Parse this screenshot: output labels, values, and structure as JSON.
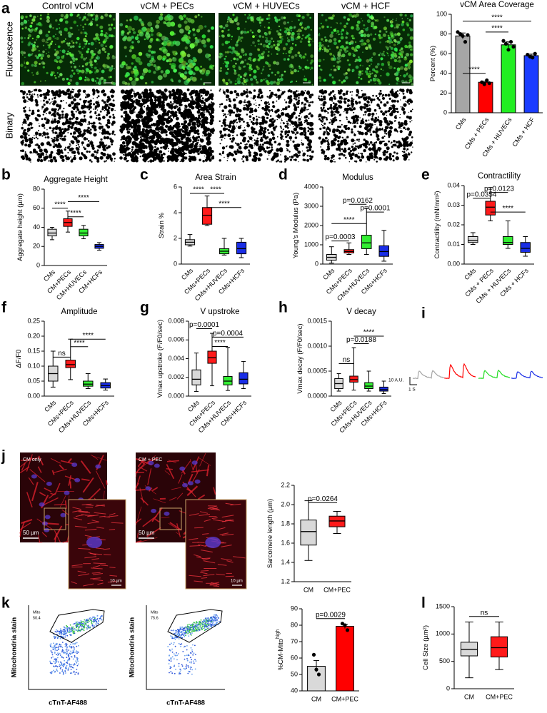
{
  "panel_a": {
    "panel": "a",
    "columns": [
      "Control vCM",
      "vCM + PECs",
      "vCM + HUVECs",
      "vCM + HCF"
    ],
    "rows": [
      "Fluorescence",
      "Binary"
    ]
  },
  "panel_i": {
    "panel": "i",
    "scale_y": "10 A.U.",
    "scale_x": "1 S"
  },
  "panel_j": {
    "panel": "j",
    "images": [
      {
        "label": "CM only",
        "scale_main": "50 µm",
        "scale_inset": "10 µm"
      },
      {
        "label": "CM + PEC",
        "scale_main": "50 µm",
        "scale_inset": "10 µm"
      }
    ]
  },
  "panel_k": {
    "panel": "k",
    "plots": [
      {
        "ylabel": "Mitochondria stain",
        "xlabel": "cTnT-AF488",
        "gate": "Mito",
        "percent": "50.4"
      },
      {
        "ylabel": "Mitochondria stain",
        "xlabel": "cTnT-AF488",
        "gate": "Mito",
        "percent": "75.6"
      }
    ]
  },
  "chart_data": [
    {
      "type": "bar",
      "title": "vCM Area Coverage",
      "ylabel": "Percent (%)",
      "categories": [
        "CMs",
        "CMs + PECs",
        "CMs + HUVECs",
        "CMs + HCF"
      ],
      "values": [
        78,
        31,
        69,
        58
      ],
      "errors": [
        3,
        1,
        3,
        1.5
      ],
      "points": [
        [
          82,
          80,
          78,
          72,
          79
        ],
        [
          31,
          29,
          33,
          30
        ],
        [
          73,
          70,
          64,
          72,
          67
        ],
        [
          59,
          57,
          56,
          60
        ]
      ],
      "colors": [
        "#a6a6a6",
        "#ff0000",
        "#22ee22",
        "#1a3cff"
      ],
      "ylim": [
        0,
        100
      ],
      "yticks": [
        0,
        20,
        40,
        60,
        80,
        100
      ],
      "annotations": [
        {
          "label": "****",
          "between": [
            0,
            3
          ],
          "y": 93
        },
        {
          "label": "****",
          "between": [
            1,
            2
          ],
          "y": 82
        },
        {
          "label": "****",
          "between": [
            0,
            1
          ],
          "y": 40
        }
      ]
    },
    {
      "type": "box",
      "panel": "b",
      "title": "Aggregate Height",
      "ylabel": "Aggregate height (µm)",
      "categories": [
        "CMs",
        "CM+PECs",
        "CM+HUVECs",
        "CM+HCFs"
      ],
      "min": [
        27,
        35,
        28,
        16
      ],
      "q1": [
        31,
        41,
        31,
        18
      ],
      "median": [
        34,
        45,
        34,
        20
      ],
      "q3": [
        38,
        49,
        38,
        22
      ],
      "max": [
        40,
        57,
        42,
        24
      ],
      "colors": [
        "#d9d9d9",
        "#ff1a1a",
        "#33ee33",
        "#1a2ee6"
      ],
      "ylim": [
        0,
        80
      ],
      "yticks": [
        0,
        20,
        40,
        60,
        80
      ],
      "annotations": [
        {
          "label": "****",
          "between": [
            0,
            1
          ],
          "y": 60
        },
        {
          "label": "****",
          "between": [
            1,
            3
          ],
          "y": 67
        },
        {
          "label": "****",
          "between": [
            1,
            2
          ],
          "y": 51
        }
      ]
    },
    {
      "type": "box",
      "panel": "c",
      "title": "Area Strain",
      "ylabel": "Strain %",
      "categories": [
        "CMs",
        "CMs+PECs",
        "CMs+HUVECs",
        "CMs+HCFs"
      ],
      "min": [
        1.4,
        3.0,
        0.7,
        0.5
      ],
      "q1": [
        1.5,
        3.1,
        0.8,
        0.8
      ],
      "median": [
        1.7,
        3.8,
        1.0,
        1.2
      ],
      "q3": [
        1.9,
        4.4,
        1.2,
        1.7
      ],
      "max": [
        2.3,
        5.3,
        2.0,
        2.0
      ],
      "colors": [
        "#d9d9d9",
        "#ff1a1a",
        "#33ee33",
        "#1a2ee6"
      ],
      "ylim": [
        0,
        6
      ],
      "yticks": [
        0,
        2,
        4,
        6
      ],
      "annotations": [
        {
          "label": "****",
          "between": [
            0,
            1
          ],
          "y": 5.5
        },
        {
          "label": "****",
          "between": [
            1,
            2
          ],
          "y": 5.5
        },
        {
          "label": "****",
          "between": [
            1,
            3
          ],
          "y": 4.4
        }
      ]
    },
    {
      "type": "box",
      "panel": "d",
      "title": "Modulus",
      "ylabel": "Young's Modulus (Pa)",
      "categories": [
        "CMs",
        "CMs+PECs",
        "CMs+HUVECs",
        "CMs+HCFs"
      ],
      "min": [
        50,
        500,
        500,
        150
      ],
      "q1": [
        200,
        580,
        800,
        400
      ],
      "median": [
        350,
        650,
        1100,
        650
      ],
      "q3": [
        500,
        750,
        1500,
        950
      ],
      "max": [
        900,
        1100,
        2900,
        1750
      ],
      "colors": [
        "#d9d9d9",
        "#ff1a1a",
        "#33ee33",
        "#1a2ee6"
      ],
      "ylim": [
        0,
        4000
      ],
      "yticks": [
        0,
        1000,
        2000,
        3000,
        4000
      ],
      "annotations": [
        {
          "label": "p=0.0162",
          "between": [
            1,
            2
          ],
          "y": 3100
        },
        {
          "label": "p=0.0001",
          "between": [
            2,
            3
          ],
          "y": 2700
        },
        {
          "label": "****",
          "between": [
            0,
            2
          ],
          "y": 2100
        },
        {
          "label": "p=0.0003",
          "between": [
            0,
            1
          ],
          "y": 1200
        }
      ]
    },
    {
      "type": "box",
      "panel": "e",
      "title": "Contractility",
      "ylabel": "Contractility (mN/mm²)",
      "categories": [
        "CMs",
        "CMs + PECs",
        "CMs + HUVECs",
        "CMs + HCFs"
      ],
      "min": [
        0.01,
        0.022,
        0.008,
        0.004
      ],
      "q1": [
        0.011,
        0.025,
        0.01,
        0.006
      ],
      "median": [
        0.012,
        0.029,
        0.011,
        0.008
      ],
      "q3": [
        0.014,
        0.032,
        0.014,
        0.011
      ],
      "max": [
        0.016,
        0.039,
        0.022,
        0.014
      ],
      "colors": [
        "#d9d9d9",
        "#ff1a1a",
        "#33ee33",
        "#1a2ee6"
      ],
      "ylim": [
        0,
        0.04
      ],
      "yticks": [
        {
          "value": 0,
          "label": "0.00"
        },
        0.01,
        0.02,
        0.03,
        0.04
      ],
      "annotations": [
        {
          "label": "p=0.0354",
          "between": [
            0,
            1
          ],
          "y": 0.0335
        },
        {
          "label": "p=0.0123",
          "between": [
            1,
            2
          ],
          "y": 0.0365
        },
        {
          "label": "****",
          "between": [
            1,
            3
          ],
          "y": 0.0265
        }
      ]
    },
    {
      "type": "box",
      "panel": "f",
      "title": "Amplitude",
      "ylabel": "ΔF/F0",
      "categories": [
        "CMs",
        "CMs+PECs",
        "CMs+HUVECs",
        "CMs+HCFs"
      ],
      "min": [
        0.03,
        0.055,
        0.025,
        0.02
      ],
      "q1": [
        0.05,
        0.095,
        0.033,
        0.027
      ],
      "median": [
        0.075,
        0.105,
        0.04,
        0.035
      ],
      "q3": [
        0.1,
        0.12,
        0.05,
        0.045
      ],
      "max": [
        0.15,
        0.19,
        0.075,
        0.057
      ],
      "colors": [
        "#d9d9d9",
        "#ff1a1a",
        "#33ee33",
        "#1a2ee6"
      ],
      "ylim": [
        0,
        0.25
      ],
      "yticks": [
        {
          "value": 0,
          "label": "0.00"
        },
        0.05,
        {
          "value": 0.1,
          "label": "0.10"
        },
        0.15,
        {
          "value": 0.2,
          "label": "0.20"
        },
        0.25
      ],
      "annotations": [
        {
          "label": "ns",
          "between": [
            0,
            1
          ],
          "y": 0.13
        },
        {
          "label": "****",
          "between": [
            1,
            2
          ],
          "y": 0.165
        },
        {
          "label": "****",
          "between": [
            1,
            3
          ],
          "y": 0.19
        }
      ]
    },
    {
      "type": "box",
      "panel": "g",
      "title": "V upstroke",
      "ylabel": "Vmax upstroke (F/F0/sec)",
      "categories": [
        "CMs",
        "CMs+PECs",
        "CMs+HUVECs",
        "CMs+HCFs"
      ],
      "min": [
        0.0005,
        0.0011,
        0.0006,
        0.0008
      ],
      "q1": [
        0.0012,
        0.0035,
        0.0012,
        0.0013
      ],
      "median": [
        0.0018,
        0.0041,
        0.0016,
        0.0018
      ],
      "q3": [
        0.0028,
        0.0048,
        0.0021,
        0.0025
      ],
      "max": [
        0.0046,
        0.0067,
        0.0052,
        0.0037
      ],
      "colors": [
        "#d9d9d9",
        "#ff1a1a",
        "#33ee33",
        "#1a2ee6"
      ],
      "ylim": [
        0,
        0.008
      ],
      "yticks": [
        {
          "value": 0,
          "label": "0.000"
        },
        0.002,
        0.004,
        0.006,
        0.008
      ],
      "annotations": [
        {
          "label": "p=0.0001",
          "between": [
            0,
            1
          ],
          "y": 0.0072
        },
        {
          "label": "p=0.0004",
          "between": [
            1,
            3
          ],
          "y": 0.0063
        },
        {
          "label": "****",
          "between": [
            1,
            2
          ],
          "y": 0.0053
        }
      ]
    },
    {
      "type": "box",
      "panel": "h",
      "title": "V decay",
      "ylabel": "Vmax decay (F/F0/sec)",
      "categories": [
        "CMs",
        "CMs+PECs",
        "CMs+HUVECs",
        "CMs+HCFs"
      ],
      "min": [
        0.0001,
        0.00012,
        0.0001,
        5e-05
      ],
      "q1": [
        0.00015,
        0.00028,
        0.00015,
        0.0001
      ],
      "median": [
        0.00025,
        0.00033,
        0.0002,
        0.00013
      ],
      "q3": [
        0.00035,
        0.0004,
        0.00027,
        0.00018
      ],
      "max": [
        0.00045,
        0.00097,
        0.0005,
        0.0003
      ],
      "colors": [
        "#d9d9d9",
        "#ff1a1a",
        "#33ee33",
        "#1a2ee6"
      ],
      "ylim": [
        0,
        0.0015
      ],
      "yticks": [
        {
          "value": 0,
          "label": "0.0000"
        },
        0.0005,
        {
          "value": 0.001,
          "label": "0.0010"
        },
        0.0015
      ],
      "annotations": [
        {
          "label": "ns",
          "between": [
            0,
            1
          ],
          "y": 0.00065
        },
        {
          "label": "p=0.0188",
          "between": [
            1,
            2
          ],
          "y": 0.00105
        },
        {
          "label": "****",
          "between": [
            1,
            3
          ],
          "y": 0.0012
        }
      ]
    },
    {
      "type": "box",
      "ylabel": "Sarcomere length (µm)",
      "categories": [
        "CM",
        "CM+PEC"
      ],
      "min": [
        1.42,
        1.7
      ],
      "q1": [
        1.58,
        1.77
      ],
      "median": [
        1.72,
        1.83
      ],
      "q3": [
        1.84,
        1.88
      ],
      "max": [
        2.04,
        1.93
      ],
      "colors": [
        "#d9d9d9",
        "#ff1a1a"
      ],
      "ylim": [
        1.2,
        2.2
      ],
      "yticks": [
        1.2,
        1.4,
        1.6,
        1.8,
        {
          "value": 2,
          "label": "2.0"
        },
        2.2
      ],
      "annotations": [
        {
          "label": "p=0.0264",
          "between": [
            0,
            1
          ],
          "y": 2.02
        }
      ]
    },
    {
      "type": "bar",
      "ylabel": "%CM-Mito",
      "ylabel_sup": "high",
      "categories": [
        "CM",
        "CM+PEC"
      ],
      "values": [
        55,
        79.3
      ],
      "errors": [
        3.5,
        1.3
      ],
      "points": [
        [
          62,
          53,
          50
        ],
        [
          81,
          80,
          77
        ]
      ],
      "colors": [
        "#d9d9d9",
        "#ff0000"
      ],
      "ylim": [
        40,
        90
      ],
      "yticks": [
        40,
        50,
        60,
        70,
        80,
        90
      ],
      "annotations": [
        {
          "label": "p=0.0029",
          "between": [
            0,
            1
          ],
          "y": 84
        }
      ]
    },
    {
      "type": "box",
      "panel": "l",
      "ylabel": "Cell Size (µm²)",
      "categories": [
        "CM",
        "CM+PEC"
      ],
      "min": [
        200,
        350
      ],
      "q1": [
        600,
        580
      ],
      "median": [
        720,
        750
      ],
      "q3": [
        850,
        950
      ],
      "max": [
        1220,
        1220
      ],
      "colors": [
        "#d9d9d9",
        "#ff1a1a"
      ],
      "ylim": [
        0,
        1500
      ],
      "yticks": [
        0,
        500,
        1000,
        1500
      ],
      "annotations": [
        {
          "label": "ns",
          "between": [
            0,
            1
          ],
          "y": 1320
        }
      ]
    }
  ]
}
